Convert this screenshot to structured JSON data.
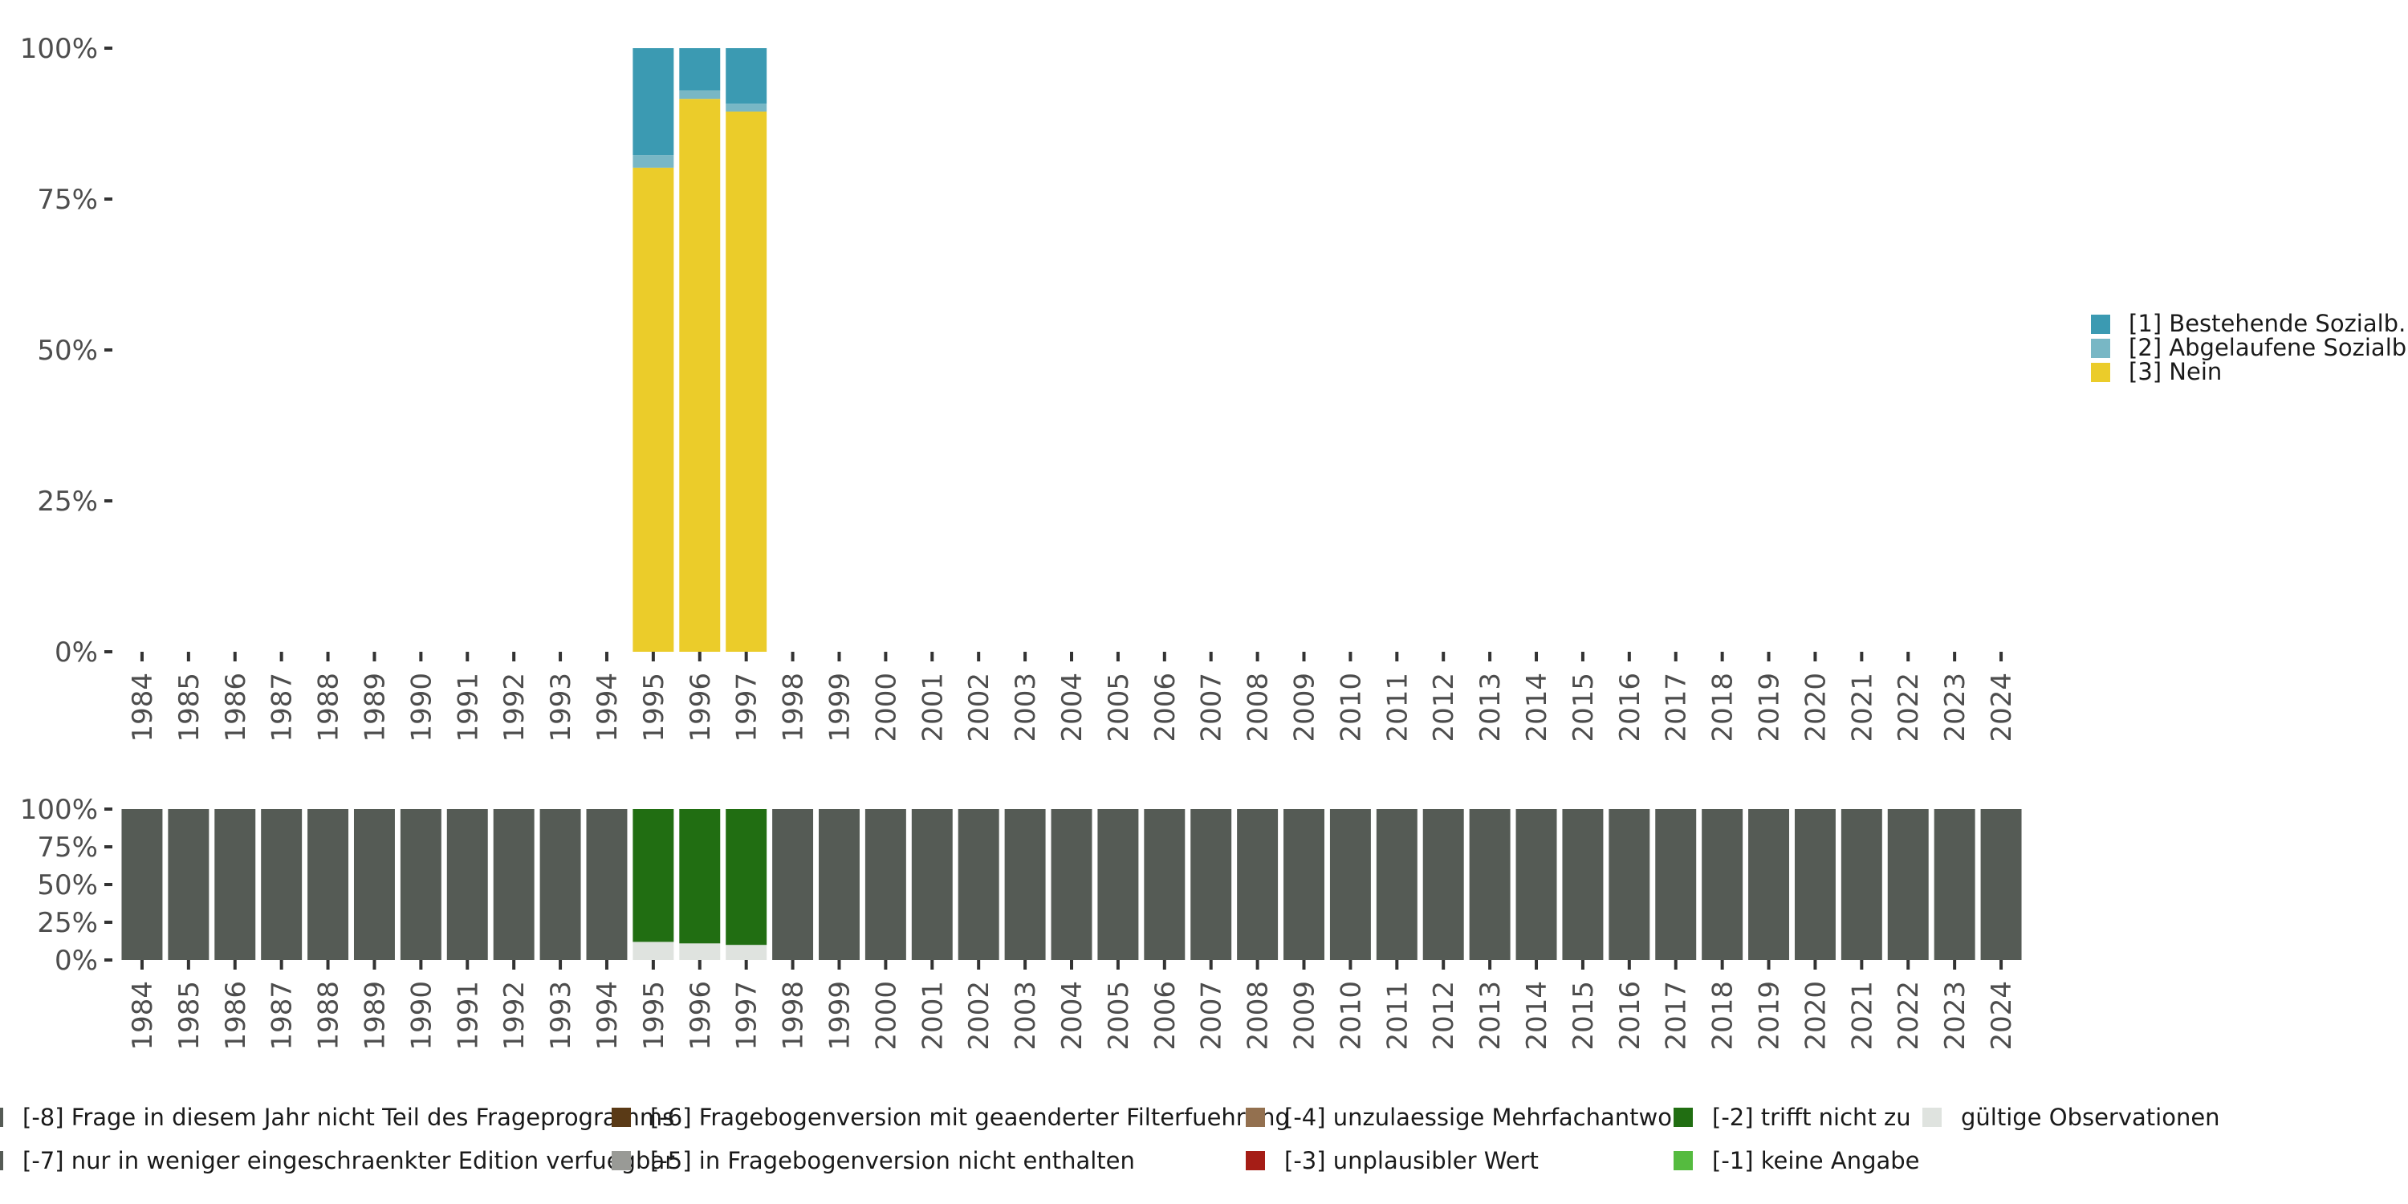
{
  "chart_data": [
    {
      "type": "bar",
      "stacked": true,
      "categories": [
        "1984",
        "1985",
        "1986",
        "1987",
        "1988",
        "1989",
        "1990",
        "1991",
        "1992",
        "1993",
        "1994",
        "1995",
        "1996",
        "1997",
        "1998",
        "1999",
        "2000",
        "2001",
        "2002",
        "2003",
        "2004",
        "2005",
        "2006",
        "2007",
        "2008",
        "2009",
        "2010",
        "2011",
        "2012",
        "2013",
        "2014",
        "2015",
        "2016",
        "2017",
        "2018",
        "2019",
        "2020",
        "2021",
        "2022",
        "2023",
        "2024"
      ],
      "y_ticks": [
        "0%",
        "25%",
        "50%",
        "75%",
        "100%"
      ],
      "ylim": [
        0,
        100
      ],
      "legend_position": "right",
      "series": [
        {
          "name": "[3] Nein",
          "color": "#EBCC2A",
          "values": [
            null,
            null,
            null,
            null,
            null,
            null,
            null,
            null,
            null,
            null,
            null,
            80.2,
            91.6,
            89.5,
            null,
            null,
            null,
            null,
            null,
            null,
            null,
            null,
            null,
            null,
            null,
            null,
            null,
            null,
            null,
            null,
            null,
            null,
            null,
            null,
            null,
            null,
            null,
            null,
            null,
            null,
            null
          ]
        },
        {
          "name": "[2] Abgelaufene Sozialb.",
          "color": "#78B7C5",
          "values": [
            null,
            null,
            null,
            null,
            null,
            null,
            null,
            null,
            null,
            null,
            null,
            2.1,
            1.4,
            1.3,
            null,
            null,
            null,
            null,
            null,
            null,
            null,
            null,
            null,
            null,
            null,
            null,
            null,
            null,
            null,
            null,
            null,
            null,
            null,
            null,
            null,
            null,
            null,
            null,
            null,
            null,
            null
          ]
        },
        {
          "name": "[1] Bestehende Sozialb.",
          "color": "#3B9AB2",
          "values": [
            null,
            null,
            null,
            null,
            null,
            null,
            null,
            null,
            null,
            null,
            null,
            17.7,
            7.0,
            9.2,
            null,
            null,
            null,
            null,
            null,
            null,
            null,
            null,
            null,
            null,
            null,
            null,
            null,
            null,
            null,
            null,
            null,
            null,
            null,
            null,
            null,
            null,
            null,
            null,
            null,
            null,
            null
          ]
        }
      ]
    },
    {
      "type": "bar",
      "stacked": true,
      "categories": [
        "1984",
        "1985",
        "1986",
        "1987",
        "1988",
        "1989",
        "1990",
        "1991",
        "1992",
        "1993",
        "1994",
        "1995",
        "1996",
        "1997",
        "1998",
        "1999",
        "2000",
        "2001",
        "2002",
        "2003",
        "2004",
        "2005",
        "2006",
        "2007",
        "2008",
        "2009",
        "2010",
        "2011",
        "2012",
        "2013",
        "2014",
        "2015",
        "2016",
        "2017",
        "2018",
        "2019",
        "2020",
        "2021",
        "2022",
        "2023",
        "2024"
      ],
      "y_ticks": [
        "0%",
        "25%",
        "50%",
        "75%",
        "100%"
      ],
      "ylim": [
        0,
        100
      ],
      "legend_position": "bottom",
      "series": [
        {
          "name": "gültige Observationen",
          "color": "#DFE3DF",
          "values": [
            0,
            0,
            0,
            0,
            0,
            0,
            0,
            0,
            0,
            0,
            0,
            12,
            11,
            10,
            0,
            0,
            0,
            0,
            0,
            0,
            0,
            0,
            0,
            0,
            0,
            0,
            0,
            0,
            0,
            0,
            0,
            0,
            0,
            0,
            0,
            0,
            0,
            0,
            0,
            0,
            0
          ]
        },
        {
          "name": "[-2] trifft nicht zu",
          "color": "#216E12",
          "values": [
            0,
            0,
            0,
            0,
            0,
            0,
            0,
            0,
            0,
            0,
            0,
            88,
            89,
            90,
            0,
            0,
            0,
            0,
            0,
            0,
            0,
            0,
            0,
            0,
            0,
            0,
            0,
            0,
            0,
            0,
            0,
            0,
            0,
            0,
            0,
            0,
            0,
            0,
            0,
            0,
            0
          ]
        },
        {
          "name": "[-8] Frage in diesem Jahr nicht Teil des Frageprogramms",
          "color": "#555B55",
          "values": [
            100,
            100,
            100,
            100,
            100,
            100,
            100,
            100,
            100,
            100,
            100,
            0,
            0,
            0,
            100,
            100,
            100,
            100,
            100,
            100,
            100,
            100,
            100,
            100,
            100,
            100,
            100,
            100,
            100,
            100,
            100,
            100,
            100,
            100,
            100,
            100,
            100,
            100,
            100,
            100,
            100
          ]
        }
      ],
      "legend": [
        {
          "name": "[-8] Frage in diesem Jahr nicht Teil des Frageprogramms",
          "color": "#555B55"
        },
        {
          "name": "[-7] nur in weniger eingeschraenkter Edition verfuegbar",
          "color": "#555B55"
        },
        {
          "name": "[-6] Fragebogenversion mit geaenderter Filterfuehrung",
          "color": "#5A3A16"
        },
        {
          "name": "[-5] in Fragebogenversion nicht enthalten",
          "color": "#999A96"
        },
        {
          "name": "[-4] unzulaessige Mehrfachantwort",
          "color": "#93704F"
        },
        {
          "name": "[-3] unplausibler Wert",
          "color": "#A51D16"
        },
        {
          "name": "[-2] trifft nicht zu",
          "color": "#216E12"
        },
        {
          "name": "[-1] keine Angabe",
          "color": "#55BB3F"
        },
        {
          "name": "gültige Observationen",
          "color": "#DFE3DF"
        }
      ]
    }
  ]
}
